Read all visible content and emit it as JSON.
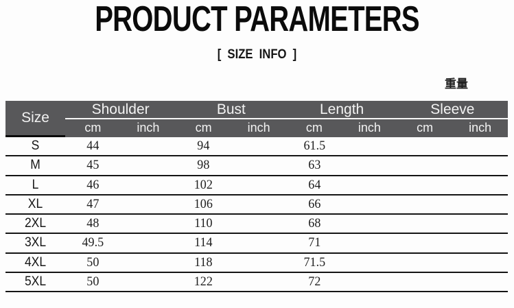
{
  "header": {
    "title": "PRODUCT PARAMETERS",
    "subtitle": "[ SIZE INFO ]",
    "weight_label": "重量"
  },
  "table": {
    "size_header": "Size",
    "groups": [
      {
        "label": "Shoulder"
      },
      {
        "label": "Bust"
      },
      {
        "label": "Length"
      },
      {
        "label": "Sleeve"
      }
    ],
    "unit_headers": [
      "cm",
      "inch"
    ],
    "rows": [
      {
        "size": "S",
        "shoulder_cm": "44",
        "shoulder_inch": "",
        "bust_cm": "94",
        "bust_inch": "",
        "length_cm": "61.5",
        "length_inch": "",
        "sleeve_cm": "",
        "sleeve_inch": ""
      },
      {
        "size": "M",
        "shoulder_cm": "45",
        "shoulder_inch": "",
        "bust_cm": "98",
        "bust_inch": "",
        "length_cm": "63",
        "length_inch": "",
        "sleeve_cm": "",
        "sleeve_inch": ""
      },
      {
        "size": "L",
        "shoulder_cm": "46",
        "shoulder_inch": "",
        "bust_cm": "102",
        "bust_inch": "",
        "length_cm": "64",
        "length_inch": "",
        "sleeve_cm": "",
        "sleeve_inch": ""
      },
      {
        "size": "XL",
        "shoulder_cm": "47",
        "shoulder_inch": "",
        "bust_cm": "106",
        "bust_inch": "",
        "length_cm": "66",
        "length_inch": "",
        "sleeve_cm": "",
        "sleeve_inch": ""
      },
      {
        "size": "2XL",
        "shoulder_cm": "48",
        "shoulder_inch": "",
        "bust_cm": "110",
        "bust_inch": "",
        "length_cm": "68",
        "length_inch": "",
        "sleeve_cm": "",
        "sleeve_inch": ""
      },
      {
        "size": "3XL",
        "shoulder_cm": "49.5",
        "shoulder_inch": "",
        "bust_cm": "114",
        "bust_inch": "",
        "length_cm": "71",
        "length_inch": "",
        "sleeve_cm": "",
        "sleeve_inch": ""
      },
      {
        "size": "4XL",
        "shoulder_cm": "50",
        "shoulder_inch": "",
        "bust_cm": "118",
        "bust_inch": "",
        "length_cm": "71.5",
        "length_inch": "",
        "sleeve_cm": "",
        "sleeve_inch": ""
      },
      {
        "size": "5XL",
        "shoulder_cm": "50",
        "shoulder_inch": "",
        "bust_cm": "122",
        "bust_inch": "",
        "length_cm": "72",
        "length_inch": "",
        "sleeve_cm": "",
        "sleeve_inch": ""
      }
    ],
    "colors": {
      "header_bg": "#58585a",
      "header_text": "#f3f3f3",
      "row_line": "#141414"
    }
  }
}
